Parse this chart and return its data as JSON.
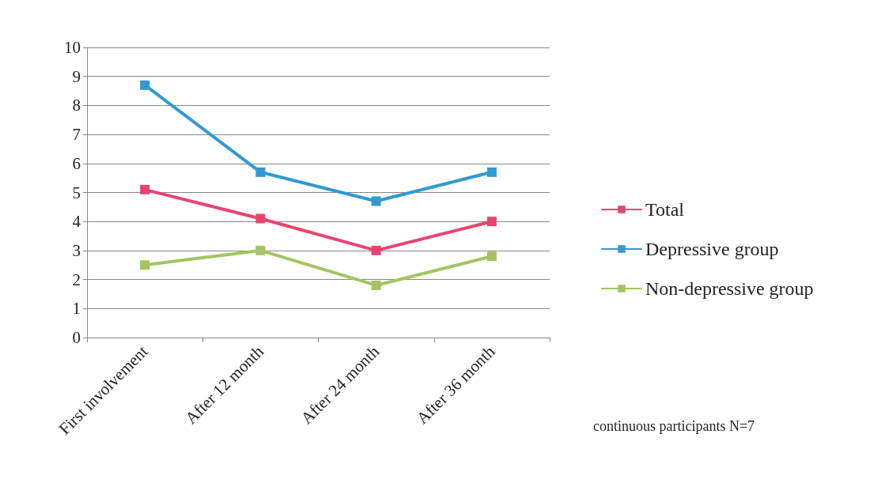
{
  "chart_data": {
    "type": "line",
    "categories": [
      "First involvement",
      "After 12 month",
      "After 24 month",
      "After 36 month"
    ],
    "series": [
      {
        "name": "Total",
        "color": "#e8456e",
        "values": [
          5.1,
          4.1,
          3.0,
          4.0
        ]
      },
      {
        "name": "Depressive group",
        "color": "#3399d1",
        "values": [
          8.7,
          5.7,
          4.7,
          5.7
        ]
      },
      {
        "name": "Non-depressive group",
        "color": "#a5c462",
        "values": [
          2.5,
          3.0,
          1.8,
          2.8
        ]
      }
    ],
    "ylim": [
      0,
      10
    ],
    "yticks": [
      0,
      1,
      2,
      3,
      4,
      5,
      6,
      7,
      8,
      9,
      10
    ],
    "grid": "y",
    "legend": "right",
    "marker": "square",
    "line_style": "solid",
    "annotations": [
      "continuous participants N=7"
    ]
  }
}
